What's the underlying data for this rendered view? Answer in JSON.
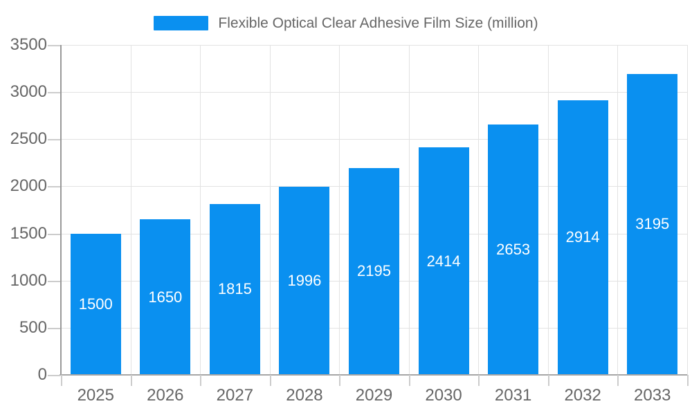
{
  "chart_data": {
    "type": "bar",
    "title": "Flexible Optical Clear Adhesive Film Size (million)",
    "legend": {
      "position": "top-center",
      "label": "Flexible Optical Clear Adhesive Film Size (million)"
    },
    "categories": [
      "2025",
      "2026",
      "2027",
      "2028",
      "2029",
      "2030",
      "2031",
      "2032",
      "2033"
    ],
    "values": [
      1500,
      1650,
      1815,
      1996,
      2195,
      2414,
      2653,
      2914,
      3195
    ],
    "bar_labels": [
      "1500",
      "1650",
      "1815",
      "1996",
      "2195",
      "2414",
      "2653",
      "2914",
      "3195"
    ],
    "xlabel": "",
    "ylabel": "",
    "ylim": [
      0,
      3500
    ],
    "ytick_step": 500,
    "y_tick_labels": [
      "0",
      "500",
      "1000",
      "1500",
      "2000",
      "2500",
      "3000",
      "3500"
    ],
    "grid": true,
    "colors": {
      "bar": "#0a90f0",
      "bar_value_text": "#ffffff",
      "axis_text": "#666666",
      "legend_text": "#666666",
      "gridline": "#e2e2e2",
      "axis_line": "#999999",
      "tick_mark": "#cccccc",
      "background": "#ffffff"
    }
  }
}
